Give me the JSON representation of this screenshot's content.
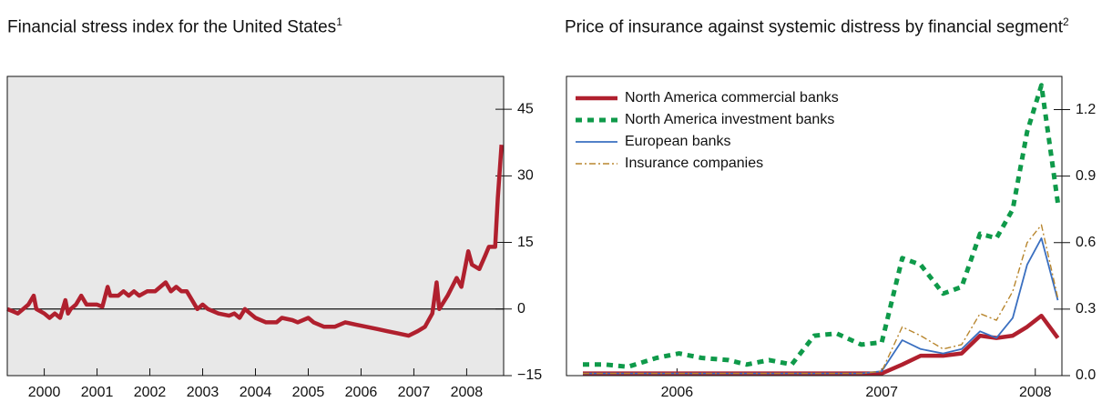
{
  "chart_data": [
    {
      "type": "line",
      "title": "Financial stress index for the United States",
      "title_note": "1",
      "x": [
        1999.8,
        1999.9,
        2000.0,
        2000.1,
        2000.2,
        2000.3,
        2000.35,
        2000.5,
        2000.6,
        2000.7,
        2000.8,
        2000.9,
        2000.95,
        2001.0,
        2001.1,
        2001.2,
        2001.3,
        2001.5,
        2001.6,
        2001.7,
        2001.75,
        2001.9,
        2002.0,
        2002.1,
        2002.2,
        2002.3,
        2002.45,
        2002.6,
        2002.7,
        2002.8,
        2002.9,
        2003.0,
        2003.1,
        2003.2,
        2003.3,
        2003.4,
        2003.5,
        2003.6,
        2003.8,
        2004.0,
        2004.1,
        2004.2,
        2004.3,
        2004.4,
        2004.5,
        2004.7,
        2004.9,
        2005.0,
        2005.2,
        2005.3,
        2005.5,
        2005.6,
        2005.8,
        2006.0,
        2006.2,
        2006.4,
        2006.6,
        2006.8,
        2007.0,
        2007.2,
        2007.4,
        2007.57,
        2007.71,
        2007.85,
        2007.93,
        2007.98,
        2008.14,
        2008.31,
        2008.4,
        2008.53,
        2008.6,
        2008.74,
        2008.85,
        2008.92,
        2009.04,
        2009.09,
        2009.16
      ],
      "values": [
        0,
        -0.5,
        -1,
        0,
        1,
        3,
        0,
        -1,
        -2,
        -1,
        -2,
        2,
        -1,
        0,
        1,
        3,
        1,
        1,
        0.5,
        5,
        3,
        3,
        4,
        3,
        4,
        3,
        4,
        4,
        5,
        6,
        4,
        5,
        4,
        4,
        2,
        0,
        1,
        0,
        -1,
        -1.5,
        -1,
        -2,
        0,
        -1,
        -2,
        -3,
        -3,
        -2,
        -2.5,
        -3,
        -2,
        -3,
        -4,
        -4,
        -3,
        -3.5,
        -4,
        -4.5,
        -5,
        -5.5,
        -6,
        -5,
        -4,
        -1,
        6,
        0,
        3,
        7,
        5,
        13,
        10,
        9,
        12,
        14,
        14,
        25,
        37
      ],
      "color": "#b0202e",
      "style": "thick",
      "background": "#e8e8e8",
      "zero_line": true,
      "xlim": [
        1999.8,
        2009.2
      ],
      "xticks": [
        {
          "value": 2000.5,
          "label": "2000"
        },
        {
          "value": 2001.5,
          "label": "2001"
        },
        {
          "value": 2002.5,
          "label": "2002"
        },
        {
          "value": 2003.5,
          "label": "2003"
        },
        {
          "value": 2004.5,
          "label": "2004"
        },
        {
          "value": 2005.5,
          "label": "2005"
        },
        {
          "value": 2006.5,
          "label": "2006"
        },
        {
          "value": 2007.5,
          "label": "2007"
        },
        {
          "value": 2008.5,
          "label": "2008"
        }
      ],
      "ylim": [
        -15,
        52.4
      ],
      "yticks": [
        {
          "value": -15,
          "label": "−15"
        },
        0,
        15,
        30,
        45
      ]
    },
    {
      "type": "line",
      "title": "Price of insurance against systemic distress by financial segment",
      "title_note": "2",
      "x": [
        2006.04,
        2006.15,
        2006.26,
        2006.4,
        2006.51,
        2006.62,
        2006.75,
        2006.84,
        2006.95,
        2007.06,
        2007.17,
        2007.28,
        2007.4,
        2007.5,
        2007.6,
        2007.69,
        2007.8,
        2007.89,
        2007.98,
        2008.06,
        2008.14,
        2008.21,
        2008.28,
        2008.36
      ],
      "series": [
        {
          "name": "North America commercial banks",
          "color": "#b0202e",
          "style": "thick",
          "values": [
            0.01,
            0.01,
            0.01,
            0.01,
            0.01,
            0.01,
            0.01,
            0.01,
            0.01,
            0.01,
            0.01,
            0.01,
            0.01,
            0.01,
            0.05,
            0.09,
            0.09,
            0.1,
            0.18,
            0.17,
            0.18,
            0.22,
            0.27,
            0.17
          ]
        },
        {
          "name": "North America investment banks",
          "color": "#0f9a4a",
          "style": "dashed",
          "values": [
            0.05,
            0.05,
            0.04,
            0.08,
            0.1,
            0.08,
            0.07,
            0.05,
            0.07,
            0.05,
            0.18,
            0.19,
            0.14,
            0.15,
            0.53,
            0.5,
            0.37,
            0.4,
            0.64,
            0.62,
            0.75,
            1.1,
            1.31,
            0.78
          ]
        },
        {
          "name": "European banks",
          "color": "#3a6fc0",
          "style": "solid",
          "values": [
            0.01,
            0.01,
            0.01,
            0.01,
            0.01,
            0.01,
            0.01,
            0.01,
            0.01,
            0.01,
            0.01,
            0.01,
            0.01,
            0.02,
            0.16,
            0.12,
            0.1,
            0.12,
            0.2,
            0.17,
            0.26,
            0.5,
            0.62,
            0.34
          ]
        },
        {
          "name": "Insurance companies",
          "color": "#b8862e",
          "style": "dashdot",
          "values": [
            0.01,
            0.01,
            0.01,
            0.01,
            0.01,
            0.01,
            0.01,
            0.01,
            0.01,
            0.01,
            0.01,
            0.01,
            0.01,
            0.02,
            0.22,
            0.18,
            0.12,
            0.14,
            0.28,
            0.25,
            0.38,
            0.6,
            0.68,
            0.35
          ]
        }
      ],
      "background": "#ffffff",
      "legend": "upper left",
      "xlim": [
        2005.96,
        2008.38
      ],
      "xticks": [
        {
          "value": 2006.5,
          "label": "2006"
        },
        {
          "value": 2007.5,
          "label": "2007"
        },
        {
          "value": 2008.25,
          "label": "2008"
        }
      ],
      "ylim": [
        0,
        1.35
      ],
      "yticks": [
        {
          "value": 0,
          "label": "0.0"
        },
        0.3,
        0.6,
        0.9,
        1.2
      ]
    }
  ]
}
